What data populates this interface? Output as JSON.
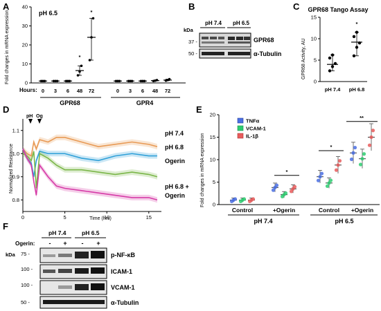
{
  "panels": {
    "a": {
      "letter": "A",
      "condition": "pH 6.5",
      "ylabel": "Fold changes in mRNA expression",
      "hours_label": "Hours:",
      "hours": [
        "0",
        "3",
        "6",
        "48",
        "72",
        "0",
        "3",
        "6",
        "48",
        "72"
      ],
      "gene1": "GPR68",
      "gene2": "GPR4",
      "stars": [
        "*",
        "*"
      ]
    },
    "b": {
      "letter": "B",
      "ph1": "pH 7.4",
      "ph2": "pH 6.5",
      "kda": "kDa",
      "marker1": "37 -",
      "marker2": "50 -",
      "band1": "GPR68",
      "band2": "α-Tubulin"
    },
    "c": {
      "letter": "C",
      "title": "GPR68 Tango Assay",
      "ylabel": "GPR68 Activity, AU",
      "star": "*"
    },
    "d": {
      "letter": "D",
      "ylabel": "Normalized Resistance",
      "xlabel": "Time (hrs)",
      "marker_ph": "pH",
      "marker_og": "Og",
      "series_labels": [
        "pH 7.4",
        "pH 6.8",
        "Ogerin",
        "pH 6.8 +",
        "Ogerin"
      ]
    },
    "e": {
      "letter": "E",
      "ylabel": "Fold changes in mRNA expression",
      "legend": [
        "TNFα",
        "VCAM-1",
        "IL-1β"
      ],
      "groups": [
        "Control",
        "+Ogerin",
        "Control",
        "+Ogerin"
      ],
      "ph_labels": [
        "pH 7.4",
        "pH 6.5"
      ],
      "stars": [
        "*",
        "*",
        "**"
      ]
    },
    "f": {
      "letter": "F",
      "ph1": "pH 7.4",
      "ph2": "pH 6.5",
      "ogerin_label": "Ogerin:",
      "signs": [
        "-",
        "+",
        "-",
        "+"
      ],
      "kda": "kDa",
      "markers": [
        "75 -",
        "100 -",
        "100 -",
        "50 -"
      ],
      "bands": [
        "p-NF-κB",
        "ICAM-1",
        "VCAM-1",
        "α-Tubulin"
      ]
    }
  },
  "chart_data": [
    {
      "type": "scatter",
      "panel": "A",
      "ylabel": "Fold changes in mRNA expression",
      "xlabel": "Hours:",
      "ylim": [
        0,
        40
      ],
      "yticks": [
        0,
        10,
        20,
        30,
        40
      ],
      "categories": [
        "0",
        "3",
        "6",
        "48",
        "72",
        "0",
        "3",
        "6",
        "48",
        "72"
      ],
      "series": [
        {
          "name": "GPR68",
          "means": [
            1,
            1,
            1,
            6.5,
            24
          ],
          "points": [
            [
              1,
              1,
              1
            ],
            [
              1,
              1,
              1
            ],
            [
              1,
              1,
              1
            ],
            [
              4,
              6,
              9
            ],
            [
              12,
              24,
              34
            ]
          ]
        },
        {
          "name": "GPR4",
          "means": [
            1,
            1,
            1,
            1.2,
            1.5
          ],
          "points": [
            [
              1,
              1,
              1
            ],
            [
              1,
              1,
              1
            ],
            [
              1,
              1,
              1
            ],
            [
              1,
              1.2,
              1.5
            ],
            [
              1.2,
              1.5,
              2
            ]
          ]
        }
      ]
    },
    {
      "type": "scatter",
      "panel": "C",
      "title": "GPR68 Tango Assay",
      "ylabel": "GPR68 Activity, AU",
      "ylim": [
        0,
        15
      ],
      "yticks": [
        0,
        5,
        10,
        15
      ],
      "categories": [
        "pH 7.4",
        "pH 6.8"
      ],
      "means": [
        4,
        9.2
      ],
      "points": [
        [
          2.5,
          3.5,
          4.2,
          5.5,
          6.2
        ],
        [
          6,
          8,
          9,
          10.5,
          11.5
        ]
      ]
    },
    {
      "type": "line",
      "panel": "D",
      "ylabel": "Normalized Resistance",
      "xlabel": "Time (hrs)",
      "xlim": [
        0,
        16.5
      ],
      "ylim": [
        0.75,
        1.15
      ],
      "xticks": [
        0,
        5,
        10,
        15
      ],
      "yticks": [
        0.8,
        0.9,
        1.0,
        1.1
      ],
      "series": [
        {
          "name": "pH 7.4",
          "color": "#e89a55",
          "x": [
            0,
            0.5,
            1,
            1.3,
            1.6,
            2,
            3,
            4,
            5,
            7,
            9,
            11,
            13,
            15,
            16
          ],
          "y": [
            1.02,
            1.0,
            0.99,
            1.05,
            1.02,
            1.06,
            1.05,
            1.07,
            1.07,
            1.05,
            1.03,
            1.04,
            1.05,
            1.04,
            1.03
          ]
        },
        {
          "name": "pH 6.8",
          "color": "#2fa0d8",
          "x": [
            0,
            0.5,
            1,
            1.3,
            1.6,
            2,
            3,
            4,
            5,
            7,
            9,
            11,
            13,
            15,
            16
          ],
          "y": [
            1.02,
            0.98,
            0.96,
            0.9,
            0.97,
            1.01,
            1.0,
            1.0,
            1.0,
            0.98,
            0.97,
            0.99,
            1.0,
            0.99,
            0.99
          ]
        },
        {
          "name": "Ogerin",
          "color": "#7ab648",
          "x": [
            0,
            0.5,
            1,
            1.3,
            1.6,
            2,
            3,
            4,
            5,
            7,
            9,
            11,
            13,
            15,
            16
          ],
          "y": [
            1.0,
            0.99,
            0.97,
            1.01,
            0.85,
            1.0,
            0.98,
            0.95,
            0.93,
            0.93,
            0.92,
            0.91,
            0.92,
            0.91,
            0.9
          ]
        },
        {
          "name": "pH 6.8 + Ogerin",
          "color": "#d63ba7",
          "x": [
            0,
            0.5,
            1,
            1.3,
            1.6,
            2,
            3,
            4,
            5,
            7,
            9,
            11,
            13,
            15,
            16
          ],
          "y": [
            1.02,
            0.98,
            0.95,
            0.88,
            0.82,
            0.95,
            0.9,
            0.86,
            0.85,
            0.84,
            0.83,
            0.82,
            0.81,
            0.81,
            0.8
          ]
        }
      ]
    },
    {
      "type": "scatter",
      "panel": "E",
      "ylabel": "Fold changes in mRNA expression",
      "ylim": [
        0,
        20
      ],
      "yticks": [
        0,
        5,
        10,
        15,
        20
      ],
      "categories": [
        "pH 7.4 Control",
        "pH 7.4 +Ogerin",
        "pH 6.5 Control",
        "pH 6.5 +Ogerin"
      ],
      "series": [
        {
          "name": "TNFα",
          "color": "#4a6fe3",
          "values": [
            1,
            3.8,
            6.2,
            11.5
          ]
        },
        {
          "name": "VCAM-1",
          "color": "#2ecc71",
          "values": [
            1,
            2.2,
            4.8,
            10.2
          ]
        },
        {
          "name": "IL-1β",
          "color": "#e85c5c",
          "values": [
            1,
            3.5,
            8.8,
            15.0
          ]
        }
      ]
    }
  ]
}
